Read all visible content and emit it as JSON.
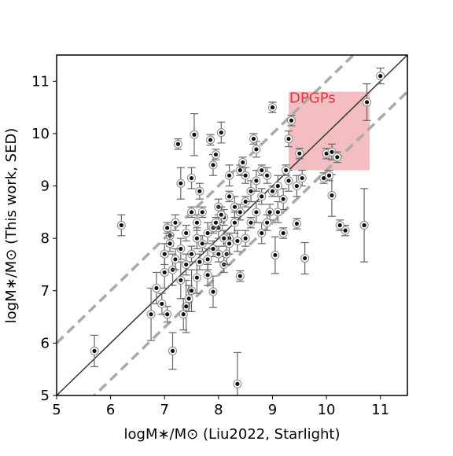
{
  "chart_data": {
    "type": "scatter",
    "xlabel": "logM∗/M⊙ (Liu2022, Starlight)",
    "ylabel": "logM∗/M⊙ (This work, SED)",
    "xlim": [
      5,
      11.5
    ],
    "ylim": [
      5,
      11.5
    ],
    "xticks": [
      5,
      6,
      7,
      8,
      9,
      10,
      11
    ],
    "yticks": [
      5,
      6,
      7,
      8,
      9,
      10,
      11
    ],
    "region": {
      "label": "DPGPs",
      "x": [
        9.3,
        10.8
      ],
      "y": [
        9.3,
        10.8
      ],
      "color": "#ee9aa0",
      "label_color": "#d9363e"
    },
    "reference_lines": [
      {
        "slope": 1,
        "intercept": 0,
        "color": "#333333",
        "dashed": false
      },
      {
        "slope": 1,
        "intercept": 1,
        "color": "#aaaaaa",
        "dashed": true
      },
      {
        "slope": 1,
        "intercept": -0.7,
        "color": "#aaaaaa",
        "dashed": true
      }
    ],
    "series": [
      {
        "color": "#111111",
        "error_color": "#666666",
        "x": [
          5.7,
          6.2,
          8.35,
          7.15,
          6.75,
          11.0,
          10.75,
          10.7,
          10.35,
          10.25,
          10.1,
          9.6,
          9.05,
          9.45,
          8.05,
          7.55,
          7.25,
          7.85,
          8.4,
          7.9,
          7.4,
          7.05,
          6.85,
          9.0,
          9.35,
          9.5,
          10.0,
          10.1,
          10.2,
          9.95,
          10.05,
          9.55,
          9.45,
          9.3,
          9.3,
          8.7,
          8.65,
          7.9,
          7.95,
          7.3,
          7.5,
          7.65,
          7.1,
          7.05,
          7.15,
          7.0,
          6.95,
          7.3,
          7.5,
          7.6,
          8.1,
          8.15,
          8.5,
          8.8,
          8.95,
          9.2,
          9.1,
          9.2,
          9.25,
          7.7,
          7.8,
          7.9,
          8.0,
          8.1,
          8.2,
          8.3,
          8.4,
          8.5,
          8.6,
          7.5,
          7.4,
          7.3,
          7.6,
          7.7,
          7.8,
          8.0,
          8.2,
          8.3,
          8.5,
          8.7,
          8.8,
          8.9,
          8.4,
          8.2,
          8.0,
          7.9,
          7.2,
          7.1,
          7.0,
          7.4,
          7.5,
          7.6,
          8.1,
          8.6,
          8.7,
          8.9,
          9.0,
          9.1,
          8.8,
          7.35,
          7.45,
          7.8,
          7.2,
          8.45,
          8.2,
          8.05,
          7.95,
          8.35,
          7.65
        ],
        "values": [
          5.85,
          8.25,
          5.22,
          5.85,
          6.55,
          11.1,
          10.6,
          8.25,
          8.15,
          8.25,
          8.82,
          7.62,
          7.68,
          8.28,
          10.02,
          9.98,
          9.8,
          9.88,
          7.28,
          6.98,
          6.7,
          6.55,
          7.05,
          10.5,
          10.25,
          9.62,
          9.62,
          9.65,
          9.55,
          9.15,
          9.2,
          9.15,
          9.0,
          9.9,
          9.1,
          9.7,
          9.9,
          9.4,
          9.6,
          9.05,
          9.15,
          8.9,
          8.05,
          8.2,
          7.4,
          7.35,
          6.75,
          7.2,
          7.0,
          7.25,
          7.5,
          7.7,
          8.0,
          8.1,
          8.5,
          8.75,
          8.5,
          8.1,
          9.3,
          7.9,
          8.1,
          7.8,
          8.2,
          8.4,
          8.0,
          8.6,
          8.5,
          8.7,
          8.9,
          7.7,
          7.5,
          7.8,
          8.3,
          8.5,
          7.6,
          7.7,
          8.8,
          8.3,
          9.2,
          9.1,
          9.3,
          9.2,
          9.3,
          9.2,
          8.6,
          8.2,
          7.6,
          7.9,
          7.7,
          8.1,
          8.5,
          8.0,
          8.0,
          8.3,
          8.5,
          8.3,
          8.9,
          9.0,
          8.8,
          6.55,
          6.85,
          7.3,
          8.3,
          9.45,
          7.9,
          8.45,
          8.3,
          7.95,
          7.55
        ],
        "errors": [
          0.3,
          0.2,
          0.6,
          0.35,
          0.5,
          0.15,
          0.35,
          0.7,
          0.1,
          0.1,
          0.4,
          0.3,
          0.35,
          0.1,
          0.2,
          0.4,
          0.1,
          0.1,
          0.1,
          0.3,
          0.5,
          0.15,
          0.3,
          0.1,
          0.1,
          0.1,
          0.1,
          0.15,
          0.1,
          0.1,
          0.1,
          0.15,
          0.2,
          0.15,
          0.2,
          0.15,
          0.1,
          0.2,
          0.1,
          0.3,
          0.2,
          0.15,
          0.2,
          0.1,
          0.3,
          0.3,
          0.2,
          0.35,
          0.4,
          0.3,
          0.15,
          0.2,
          0.15,
          0.2,
          0.15,
          0.2,
          0.2,
          0.1,
          0.1,
          0.15,
          0.2,
          0.15,
          0.2,
          0.15,
          0.1,
          0.2,
          0.15,
          0.1,
          0.2,
          0.15,
          0.2,
          0.2,
          0.15,
          0.1,
          0.2,
          0.15,
          0.1,
          0.2,
          0.15,
          0.2,
          0.1,
          0.15,
          0.1,
          0.2,
          0.15,
          0.1,
          0.2,
          0.15,
          0.2,
          0.15,
          0.1,
          0.2,
          0.15,
          0.1,
          0.2,
          0.15,
          0.1,
          0.2,
          0.15,
          0.3,
          0.25,
          0.2,
          0.15,
          0.1,
          0.2,
          0.15,
          0.1,
          0.2,
          0.15
        ]
      }
    ]
  }
}
